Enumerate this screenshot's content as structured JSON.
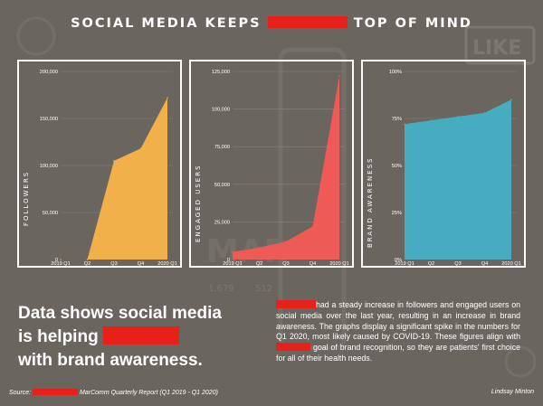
{
  "page": {
    "title_before": "SOCIAL MEDIA KEEPS",
    "title_after": "TOP OF MIND",
    "headline_line1": "Data shows social media",
    "headline_line2_prefix": "is helping",
    "headline_line3": "with brand awareness.",
    "body_text": "had a steady increase in followers and engaged users on social media over the last year, resulting in an increase in brand awareness. The graphs display a significant spike in the numbers for Q1 2020, most likely caused by COVID-19. These figures align with",
    "body_text_2": "goal of brand recognition, so they are patients' first choice for all of their health needs.",
    "source_label": "Source:",
    "source_text": "MarComm Quarterly Report (Q1 2019 - Q1 2020)",
    "author": "Lindsay Minton",
    "background_words": [
      "LIKE",
      "MAR",
      "1,679",
      "512"
    ],
    "colors": {
      "background": "#6b6560",
      "redaction": "#e8201a",
      "followers": "#f2b04a",
      "engaged": "#ee5b57",
      "awareness": "#46adc0",
      "frame": "#ffffff"
    }
  },
  "chart_data": [
    {
      "type": "area",
      "ylabel": "FOLLOWERS",
      "categories": [
        "2019 Q1",
        "Q2",
        "Q3",
        "Q4",
        "2020 Q1"
      ],
      "values": [
        0,
        0,
        105000,
        118000,
        172000
      ],
      "ylim": [
        0,
        200000
      ],
      "yticks": [
        "0",
        "50,000",
        "100,000",
        "150,000",
        "200,000"
      ],
      "ytick_values": [
        0,
        50000,
        100000,
        150000,
        200000
      ],
      "color": "#f2b04a",
      "grid": true
    },
    {
      "type": "area",
      "ylabel": "ENGAGED USERS",
      "categories": [
        "2019 Q1",
        "Q2",
        "Q3",
        "Q4",
        "2020 Q1"
      ],
      "values": [
        5000,
        8000,
        12000,
        22000,
        122000
      ],
      "ylim": [
        0,
        125000
      ],
      "yticks": [
        "0",
        "25,000",
        "50,000",
        "75,000",
        "100,000",
        "125,000"
      ],
      "ytick_values": [
        0,
        25000,
        50000,
        75000,
        100000,
        125000
      ],
      "color": "#ee5b57",
      "grid": true
    },
    {
      "type": "area",
      "ylabel": "BRAND AWARENESS",
      "categories": [
        "2019 Q1",
        "Q2",
        "Q3",
        "Q4",
        "2020 Q1"
      ],
      "values": [
        72,
        74,
        76,
        78,
        85
      ],
      "ylim": [
        0,
        100
      ],
      "yticks": [
        "0%",
        "25%",
        "50%",
        "75%",
        "100%"
      ],
      "ytick_values": [
        0,
        25,
        50,
        75,
        100
      ],
      "color": "#46adc0",
      "grid": true
    }
  ]
}
